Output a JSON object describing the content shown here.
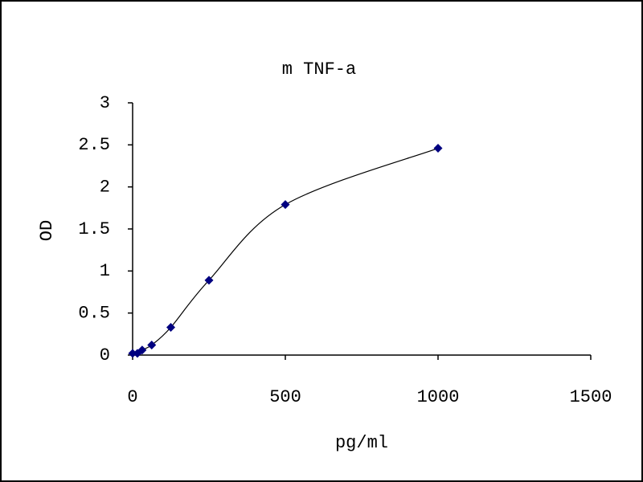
{
  "chart_data": {
    "type": "scatter-line",
    "title": "m TNF-a",
    "x_label": "pg/ml",
    "y_label": "OD",
    "x": [
      0,
      15.6,
      31.25,
      62.5,
      125,
      250,
      500,
      1000
    ],
    "series": [
      {
        "name": "OD",
        "color": "#000080",
        "values": [
          0.02,
          0.02,
          0.06,
          0.12,
          0.33,
          0.89,
          1.79,
          2.46
        ]
      }
    ],
    "xlim": [
      0,
      1500
    ],
    "xticks": [
      0,
      500,
      1000,
      1500
    ],
    "ylim": [
      0,
      3
    ],
    "yticks": [
      0,
      0.5,
      1,
      1.5,
      2,
      2.5,
      3
    ],
    "smooth": true
  }
}
